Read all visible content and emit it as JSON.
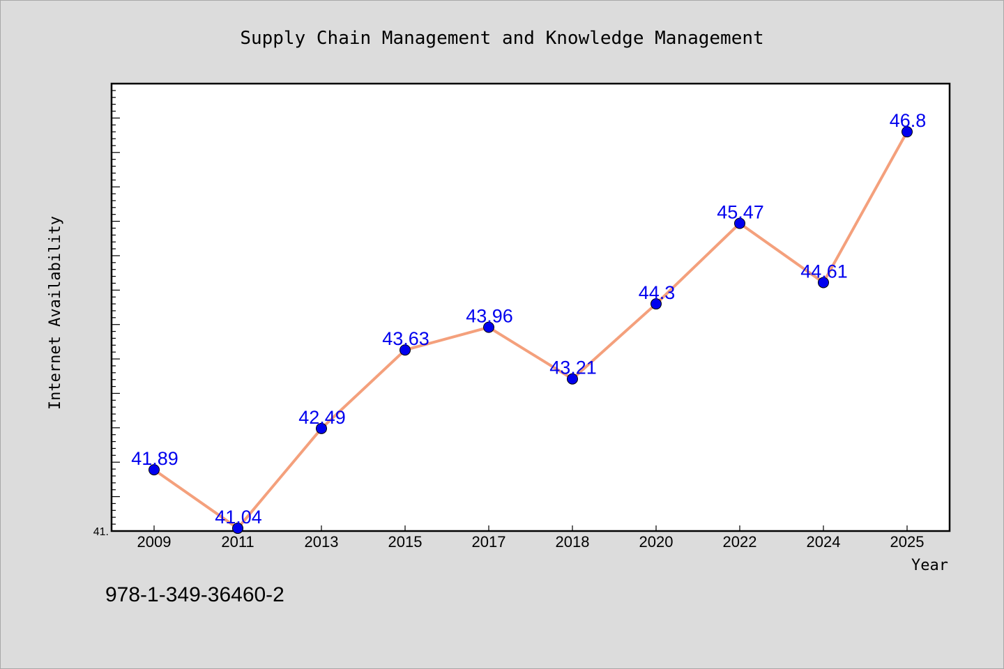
{
  "chart_data": {
    "type": "line",
    "title": "Supply Chain Management and Knowledge Management",
    "xlabel": "Year",
    "ylabel": "Internet Availability",
    "categories": [
      "2009",
      "2011",
      "2013",
      "2015",
      "2017",
      "2018",
      "2020",
      "2022",
      "2024",
      "2025"
    ],
    "series": [
      {
        "values": [
          41.89,
          41.04,
          42.49,
          43.63,
          43.96,
          43.21,
          44.3,
          45.47,
          44.61,
          46.8
        ]
      }
    ],
    "data_labels": [
      "41.89",
      "41.04",
      "42.49",
      "43.63",
      "43.96",
      "43.21",
      "44.3",
      "45.47",
      "44.61",
      "46.8"
    ],
    "ylim": [
      41.0,
      47.5
    ],
    "y_tick_label": "41.",
    "y_major_step": 0.5,
    "y_minor_step": 0.1,
    "grid": false,
    "legend": "none",
    "colors": {
      "line": "#f4a07c",
      "marker": "#0000ee",
      "data_label": "#0000ee",
      "background": "#dcdcdc",
      "plot_background": "#ffffff"
    }
  },
  "footer": {
    "isbn": "978-1-349-36460-2"
  }
}
